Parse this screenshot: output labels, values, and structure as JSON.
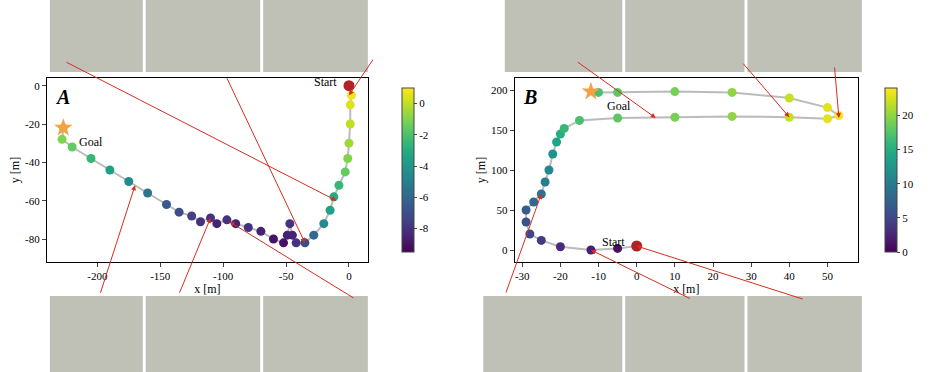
{
  "chart_data": [
    {
      "type": "scatter",
      "title": "A",
      "color": "Viridis",
      "xlabel": "x [m]",
      "ylabel": "y [m]",
      "x": [
        0,
        2,
        1,
        1,
        0,
        -1,
        -3,
        -8,
        -12,
        -15,
        -20,
        -28,
        -35,
        -42,
        -45,
        -47,
        -49,
        -52,
        -60,
        -70,
        -80,
        -90,
        -97,
        -105,
        -110,
        -118,
        -125,
        -135,
        -145,
        -160,
        -175,
        -190,
        -205,
        -220,
        -228,
        -227
      ],
      "y": [
        0,
        -5,
        -10,
        -20,
        -30,
        -38,
        -45,
        -52,
        -58,
        -65,
        -72,
        -78,
        -82,
        -82,
        -78,
        -72,
        -78,
        -82,
        -80,
        -76,
        -74,
        -72,
        -70,
        -72,
        -69,
        -71,
        -68,
        -66,
        -62,
        -56,
        -50,
        -44,
        -38,
        -32,
        -28,
        -22
      ],
      "elevation": [
        0.5,
        0.8,
        0.5,
        0,
        -0.5,
        -1,
        -1.5,
        -2.5,
        -3,
        -3.5,
        -4.5,
        -6,
        -7,
        -8,
        -8.5,
        -8,
        -8.5,
        -9,
        -9,
        -8.5,
        -8,
        -8.5,
        -8,
        -8.5,
        -8,
        -8,
        -7.5,
        -7,
        -6.5,
        -5.5,
        -4.5,
        -3.5,
        -2.5,
        -1.5,
        -1,
        -0.5
      ],
      "xlim": [
        -240,
        15
      ],
      "xticks": [
        -200,
        -150,
        -100,
        -50,
        0
      ],
      "ylim": [
        -92,
        4
      ],
      "yticks": [
        -80,
        -60,
        -40,
        -20,
        0
      ],
      "colorbar": {
        "range": [
          -9.5,
          1
        ],
        "ticks": [
          -8,
          -6,
          -4,
          -2,
          0
        ]
      },
      "grid": false,
      "markers": [
        {
          "label": "Start",
          "x": 0,
          "y": 0,
          "color": "#b22222",
          "marker": "circle"
        },
        {
          "label": "Goal",
          "x": -227,
          "y": -22,
          "color": "#f5a142",
          "marker": "star"
        }
      ]
    },
    {
      "type": "scatter",
      "title": "B",
      "color": "Viridis",
      "xlabel": "x [m]",
      "ylabel": "y [m]",
      "x": [
        0,
        -5,
        -12,
        -20,
        -25,
        -28,
        -29,
        -29,
        -27,
        -25,
        -24,
        -23,
        -22,
        -21,
        -20,
        -19,
        -15,
        -5,
        10,
        25,
        40,
        50,
        53,
        50,
        40,
        25,
        10,
        -5,
        -10
      ],
      "y": [
        5,
        2,
        0,
        4,
        12,
        20,
        35,
        50,
        60,
        70,
        85,
        100,
        120,
        135,
        145,
        152,
        162,
        165,
        166,
        167,
        166,
        164,
        168,
        178,
        190,
        197,
        198,
        197,
        197
      ],
      "elevation": [
        0,
        1,
        2,
        3,
        4,
        5,
        6,
        7,
        8,
        9,
        10,
        11,
        12,
        14,
        15,
        16,
        17,
        18,
        19,
        20,
        22,
        23,
        23.5,
        23,
        22,
        20,
        19,
        18,
        17
      ],
      "xlim": [
        -32,
        58
      ],
      "xticks": [
        -30,
        -20,
        -10,
        0,
        10,
        20,
        30,
        40,
        50
      ],
      "ylim": [
        -15,
        215
      ],
      "yticks": [
        0,
        50,
        100,
        150,
        200
      ],
      "colorbar": {
        "range": [
          0,
          24
        ],
        "ticks": [
          0,
          5,
          10,
          15,
          20
        ]
      },
      "grid": false,
      "markers": [
        {
          "label": "Start",
          "x": 0,
          "y": 5,
          "color": "#b22222",
          "marker": "circle"
        },
        {
          "label": "Goal",
          "x": -12,
          "y": 198,
          "color": "#f5a142",
          "marker": "star"
        }
      ]
    }
  ]
}
